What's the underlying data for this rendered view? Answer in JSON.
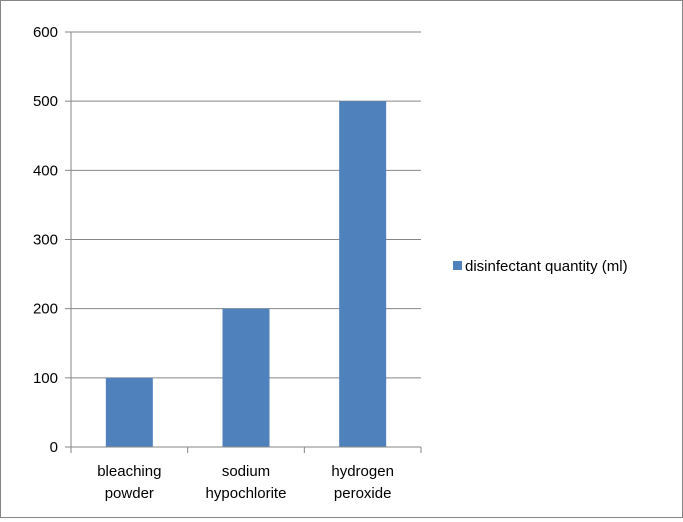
{
  "chart_data": {
    "type": "bar",
    "categories": [
      [
        "bleaching",
        "powder"
      ],
      [
        "sodium",
        "hypochlorite"
      ],
      [
        "hydrogen",
        "peroxide"
      ]
    ],
    "series": [
      {
        "name": "disinfectant quantity (ml)",
        "values": [
          100,
          200,
          500
        ],
        "color": "#4F81BD"
      }
    ],
    "ylim": [
      0,
      600
    ],
    "yticks": [
      "0",
      "100",
      "200",
      "300",
      "400",
      "500",
      "600"
    ],
    "grid": true,
    "legend": "right"
  }
}
